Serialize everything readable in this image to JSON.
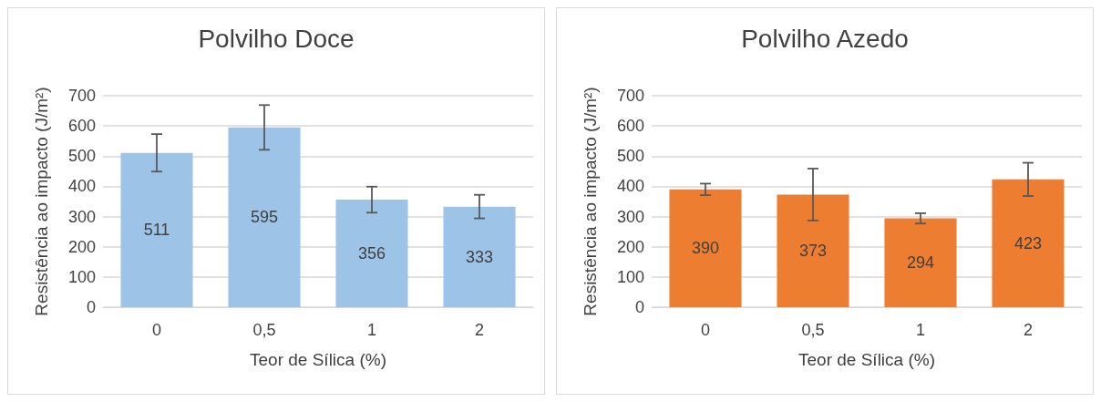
{
  "chart_data": [
    {
      "type": "bar",
      "title": "Polvilho Doce",
      "xlabel": "Teor de Sílica (%)",
      "ylabel": "Resistência ao impacto (J/m²)",
      "categories": [
        "0",
        "0,5",
        "1",
        "2"
      ],
      "values": [
        511,
        595,
        356,
        333
      ],
      "errors": [
        62,
        74,
        43,
        39
      ],
      "color": "#9dc3e6",
      "ylim": [
        0,
        700
      ],
      "yticks": [
        0,
        100,
        200,
        300,
        400,
        500,
        600,
        700
      ],
      "grid": "y",
      "data_labels": true
    },
    {
      "type": "bar",
      "title": "Polvilho Azedo",
      "xlabel": "Teor de Sílica (%)",
      "ylabel": "Resistência ao impacto (J/m²)",
      "categories": [
        "0",
        "0,5",
        "1",
        "2"
      ],
      "values": [
        390,
        373,
        294,
        423
      ],
      "errors": [
        19,
        86,
        17,
        55
      ],
      "color": "#ed7d31",
      "ylim": [
        0,
        700
      ],
      "yticks": [
        0,
        100,
        200,
        300,
        400,
        500,
        600,
        700
      ],
      "grid": "y",
      "data_labels": true
    }
  ]
}
